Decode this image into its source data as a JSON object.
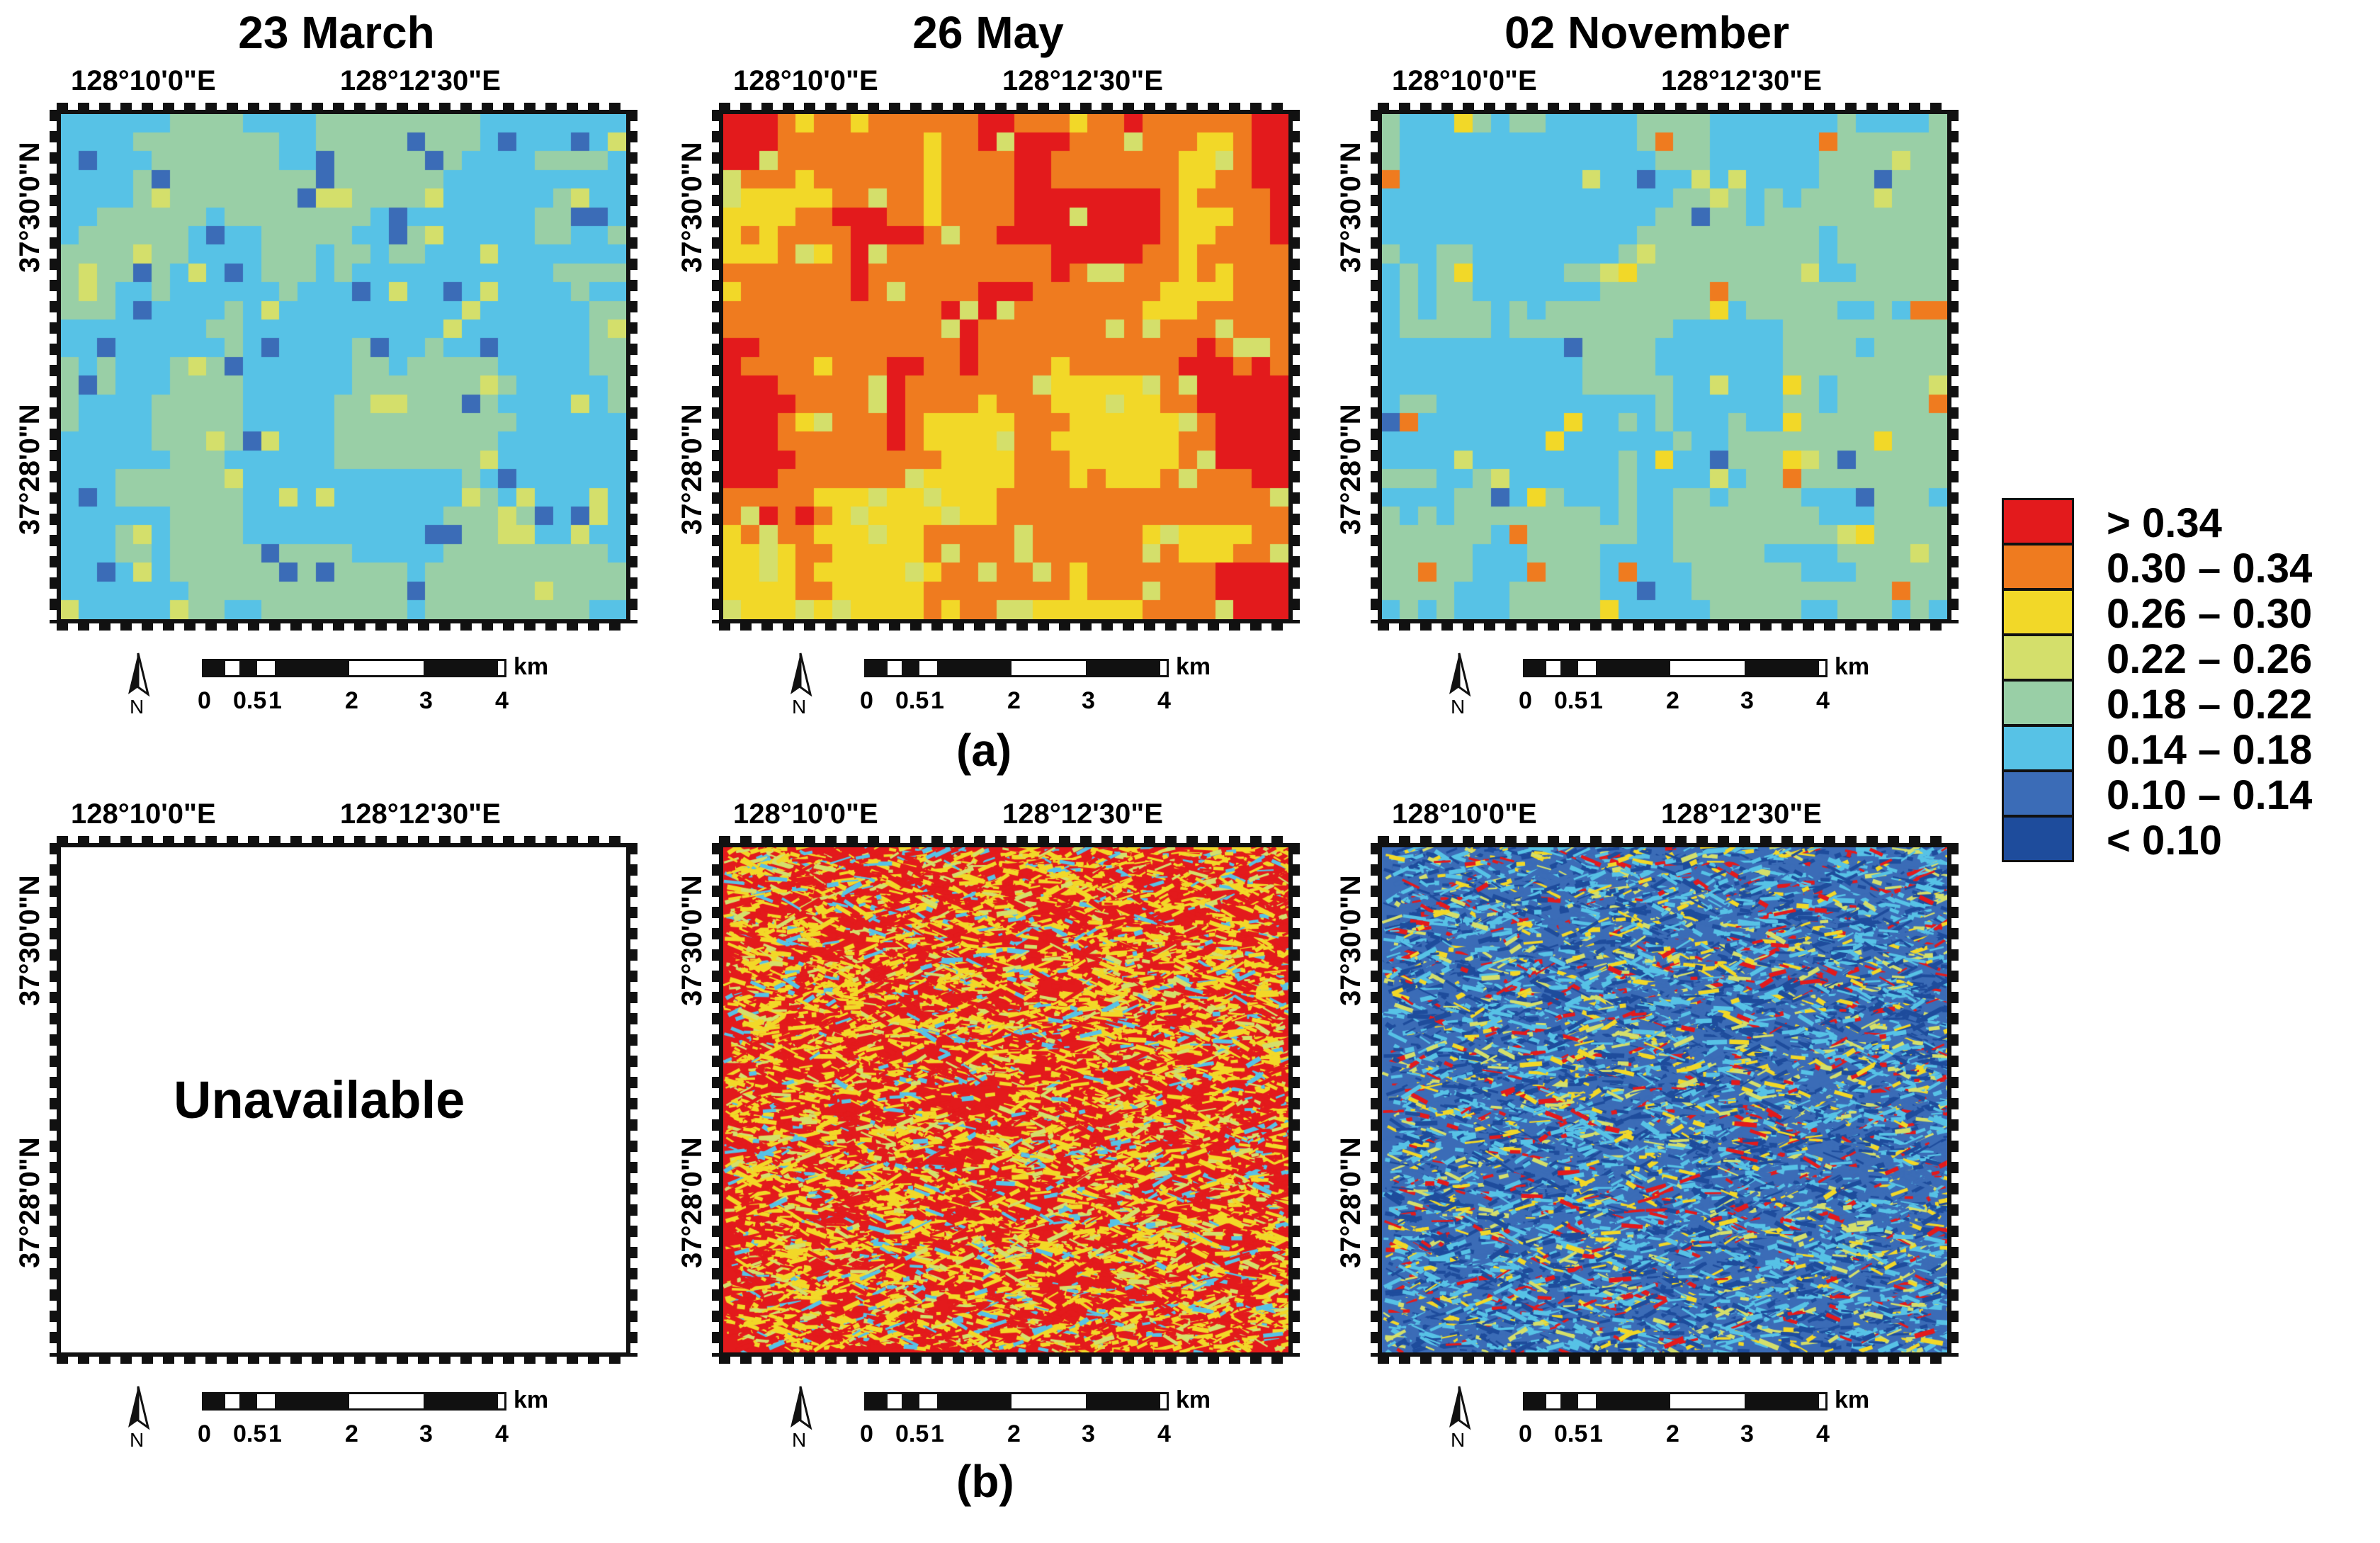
{
  "columns": [
    {
      "date": "23 March"
    },
    {
      "date": "26 May"
    },
    {
      "date": "02 November"
    }
  ],
  "map_labels": {
    "lon_left": "128°10'0\"E",
    "lon_right": "128°12'30\"E",
    "lat_top": "37°30'0\"N",
    "lat_bottom": "37°28'0\"N"
  },
  "scale": {
    "unit": "km",
    "ticks": [
      "0",
      "0.5",
      "1",
      "2",
      "3",
      "4"
    ]
  },
  "north_label": "N",
  "unavailable_text": "Unavailable",
  "row_labels": {
    "a": "(a)",
    "b": "(b)"
  },
  "legend": [
    {
      "label": "> 0.34",
      "color": "#e31a1c"
    },
    {
      "label": "0.30 – 0.34",
      "color": "#ef7b1f"
    },
    {
      "label": "0.26 – 0.30",
      "color": "#f2d828"
    },
    {
      "label": "0.22 – 0.26",
      "color": "#d4df6b"
    },
    {
      "label": "0.18 – 0.22",
      "color": "#99cfa6"
    },
    {
      "label": "0.14 – 0.18",
      "color": "#57c2e6"
    },
    {
      "label": "0.10 – 0.14",
      "color": "#3b6cb7"
    },
    {
      "label": "< 0.10",
      "color": "#1e4c9c"
    }
  ],
  "panels": {
    "a1": {
      "mode": "coarse",
      "dominant": [
        "0.14 – 0.18",
        "0.18 – 0.22"
      ],
      "minor": [
        "0.22 – 0.26",
        "0.10 – 0.14"
      ]
    },
    "a2": {
      "mode": "coarse",
      "dominant": [
        "> 0.34",
        "0.30 – 0.34",
        "0.26 – 0.30"
      ],
      "minor": [
        "0.22 – 0.26"
      ]
    },
    "a3": {
      "mode": "coarse",
      "dominant": [
        "0.18 – 0.22",
        "0.14 – 0.18"
      ],
      "minor": [
        "0.10 – 0.14",
        "0.22 – 0.26",
        "0.26 – 0.30",
        "0.30 – 0.34"
      ]
    },
    "b1": {
      "mode": "unavailable"
    },
    "b2": {
      "mode": "fine",
      "dominant": [
        "> 0.34",
        "0.26 – 0.30"
      ],
      "minor": [
        "0.22 – 0.26",
        "0.14 – 0.18"
      ]
    },
    "b3": {
      "mode": "fine",
      "dominant": [
        "0.10 – 0.14",
        "< 0.10",
        "0.14 – 0.18"
      ],
      "minor": [
        "0.26 – 0.30",
        "0.22 – 0.26",
        "> 0.34"
      ]
    }
  }
}
